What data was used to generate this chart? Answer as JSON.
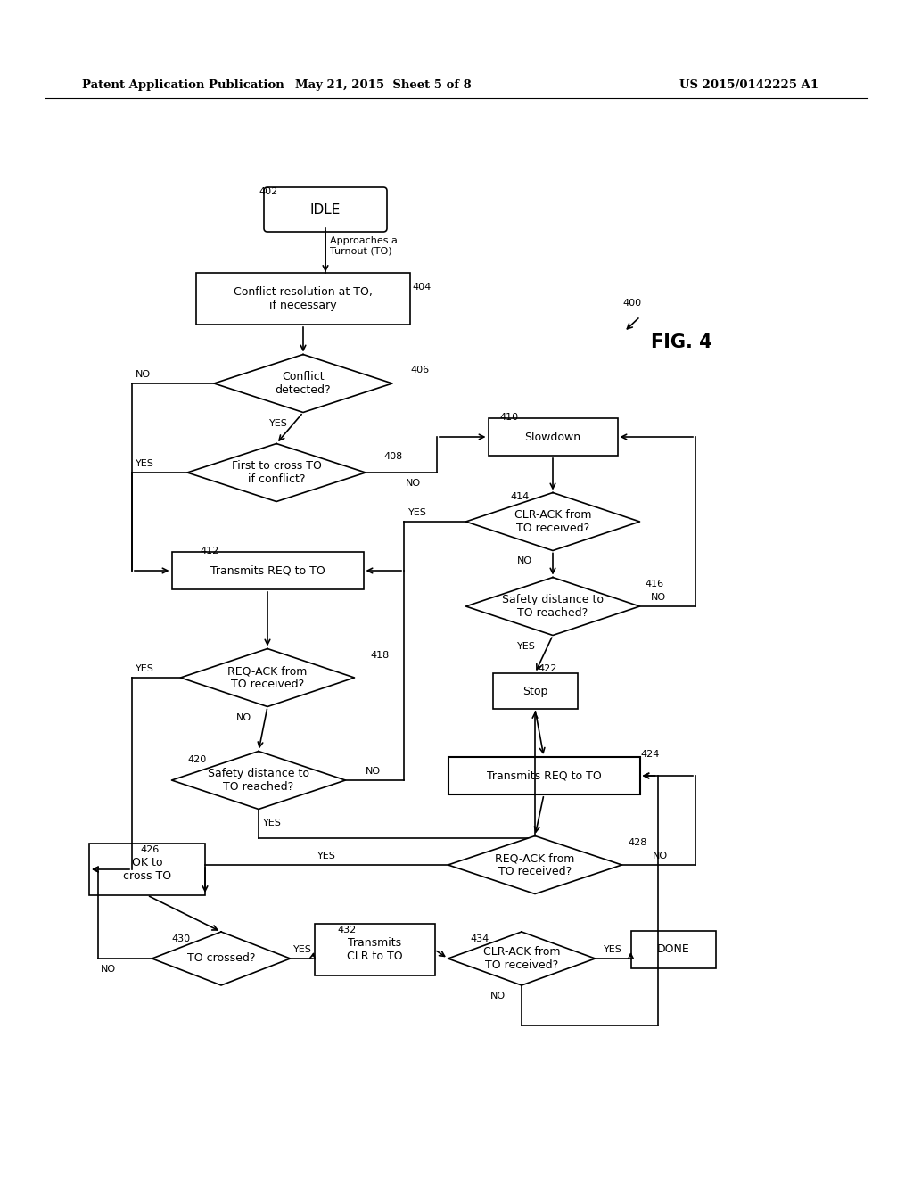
{
  "title_left": "Patent Application Publication",
  "title_center": "May 21, 2015  Sheet 5 of 8",
  "title_right": "US 2015/0142225 A1",
  "background": "#ffffff",
  "fig_w": 10.24,
  "fig_h": 13.2,
  "dpi": 100
}
